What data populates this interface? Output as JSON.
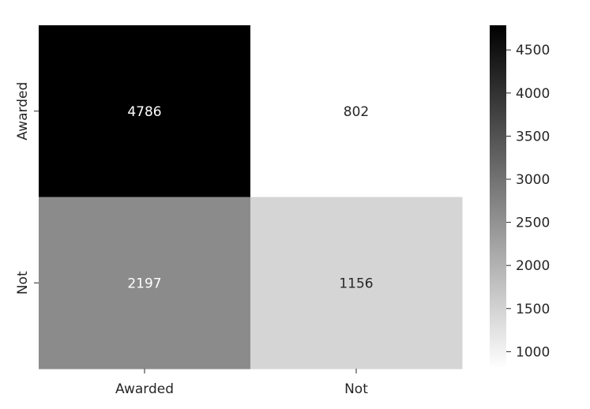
{
  "chart_data": {
    "type": "heatmap",
    "title": "",
    "xlabel": "",
    "ylabel": "",
    "x_categories": [
      "Awarded",
      "Not"
    ],
    "y_categories": [
      "Awarded",
      "Not"
    ],
    "values": [
      [
        4786,
        802
      ],
      [
        2197,
        1156
      ]
    ],
    "colormap": "Greys",
    "color_low": "#ffffff",
    "color_high": "#000000",
    "colorbar": {
      "range": [
        802,
        4786
      ],
      "ticks": [
        1000,
        1500,
        2000,
        2500,
        3000,
        3500,
        4000,
        4500
      ],
      "placement": "right"
    },
    "grid": false
  }
}
